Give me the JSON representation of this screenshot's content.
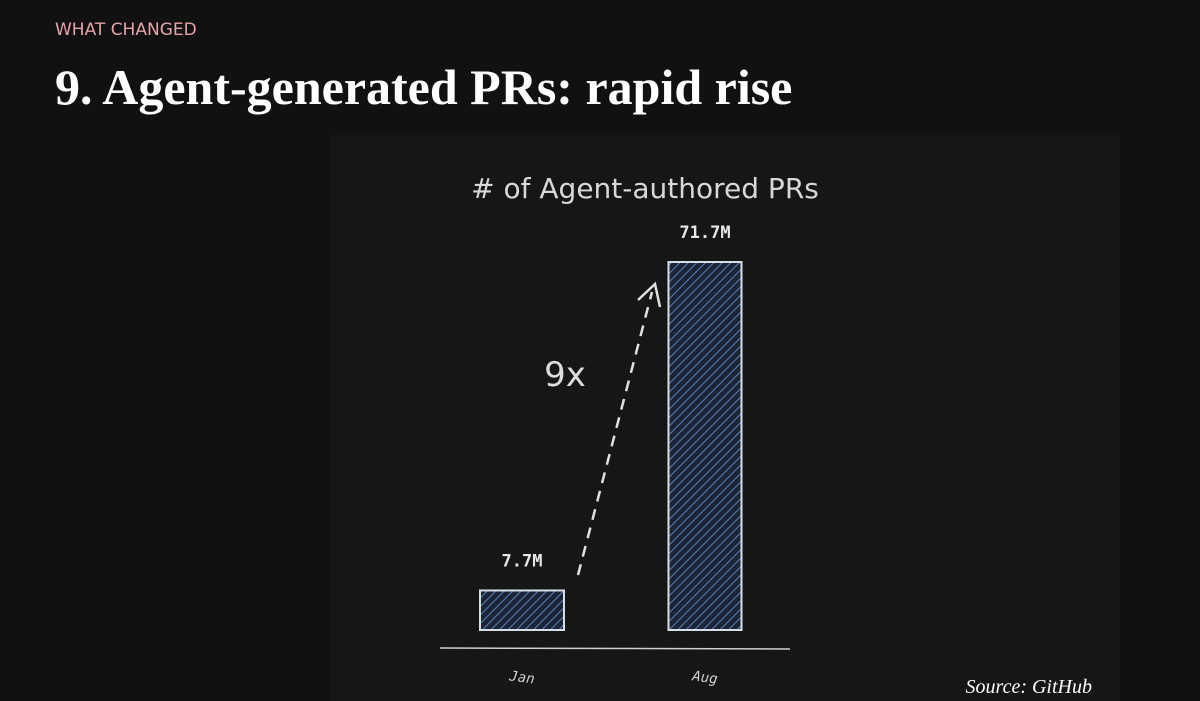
{
  "header": {
    "eyebrow": "WHAT CHANGED",
    "title": "9. Agent-generated PRs: rapid rise"
  },
  "chart_data": {
    "type": "bar",
    "title": "# of Agent-authored PRs",
    "categories": [
      "Jan",
      "Aug"
    ],
    "values": [
      7.7,
      71.7
    ],
    "value_labels": [
      "7.7M",
      "71.7M"
    ],
    "color": "#2f4a78",
    "annotation": "9x"
  },
  "source": "Source: GitHub"
}
